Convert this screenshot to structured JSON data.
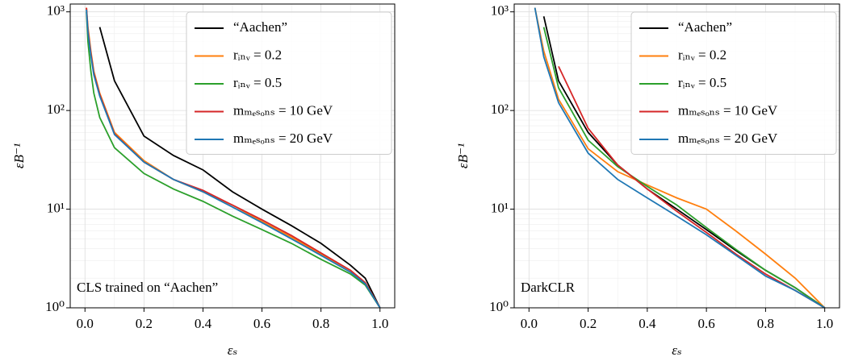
{
  "chart_data": [
    {
      "type": "line",
      "x_label": "εₛ",
      "y_label": "εB⁻¹",
      "annotation": "CLS trained on “Aachen”",
      "xlim": [
        -0.05,
        1.05
      ],
      "ylim": [
        1,
        1200
      ],
      "log_y": true,
      "grid": true,
      "legend": "upper right",
      "xticks": [
        {
          "value": 0,
          "label": "0.0"
        },
        0.2,
        0.4,
        0.6,
        0.8,
        {
          "value": 1,
          "label": "1.0"
        }
      ],
      "yticks": [
        {
          "value": 1,
          "label": "10⁰"
        },
        {
          "value": 10,
          "label": "10¹"
        },
        {
          "value": 100,
          "label": "10²"
        },
        {
          "value": 1000,
          "label": "10³"
        }
      ],
      "x": [
        0.005,
        0.01,
        0.02,
        0.03,
        0.05,
        0.1,
        0.2,
        0.3,
        0.4,
        0.5,
        0.6,
        0.7,
        0.8,
        0.9,
        0.95,
        1.0
      ],
      "series": [
        {
          "name": "“Aachen”",
          "color": "#000000",
          "values": [
            null,
            null,
            null,
            null,
            700,
            200,
            55,
            35,
            25,
            15,
            10,
            6.8,
            4.5,
            2.7,
            2,
            1
          ]
        },
        {
          "name": "rᵢₙᵥ = 0.2",
          "color": "#ff7f0e",
          "values": [
            1100,
            700,
            400,
            250,
            150,
            60,
            31,
            20,
            15,
            11,
            7.5,
            5.2,
            3.5,
            2.4,
            1.8,
            1
          ]
        },
        {
          "name": "rᵢₙᵥ = 0.5",
          "color": "#2ca02c",
          "values": [
            1000,
            500,
            250,
            150,
            85,
            42,
            23,
            16,
            12,
            8.5,
            6.2,
            4.5,
            3.1,
            2.2,
            1.7,
            1
          ]
        },
        {
          "name": "mₘₑₛₒₙₛ = 10 GeV",
          "color": "#d62728",
          "values": [
            1100,
            650,
            380,
            240,
            145,
            58,
            30,
            20,
            15.5,
            11,
            7.8,
            5.4,
            3.6,
            2.4,
            1.8,
            1
          ]
        },
        {
          "name": "mₘₑₛₒₙₛ = 20 GeV",
          "color": "#1f77b4",
          "values": [
            1050,
            620,
            360,
            230,
            140,
            57,
            30,
            20,
            15,
            10.5,
            7.3,
            5.0,
            3.4,
            2.3,
            1.75,
            1
          ]
        }
      ]
    },
    {
      "type": "line",
      "x_label": "εₛ",
      "y_label": "εB⁻¹",
      "annotation": "DarkCLR",
      "xlim": [
        -0.05,
        1.05
      ],
      "ylim": [
        1,
        1200
      ],
      "log_y": true,
      "grid": true,
      "legend": "upper right",
      "xticks": [
        {
          "value": 0,
          "label": "0.0"
        },
        0.2,
        0.4,
        0.6,
        0.8,
        {
          "value": 1,
          "label": "1.0"
        }
      ],
      "yticks": [
        {
          "value": 1,
          "label": "10⁰"
        },
        {
          "value": 10,
          "label": "10¹"
        },
        {
          "value": 100,
          "label": "10²"
        },
        {
          "value": 1000,
          "label": "10³"
        }
      ],
      "x": [
        0.02,
        0.05,
        0.1,
        0.2,
        0.3,
        0.4,
        0.5,
        0.6,
        0.7,
        0.8,
        0.9,
        1.0
      ],
      "series": [
        {
          "name": "“Aachen”",
          "color": "#000000",
          "values": [
            null,
            900,
            200,
            60,
            28,
            16,
            10,
            6.2,
            3.8,
            2.4,
            1.6,
            1
          ]
        },
        {
          "name": "rᵢₙᵥ = 0.2",
          "color": "#ff7f0e",
          "values": [
            1100,
            400,
            130,
            41,
            24,
            17.6,
            13,
            10,
            6,
            3.5,
            2,
            1
          ]
        },
        {
          "name": "rᵢₙᵥ = 0.5",
          "color": "#2ca02c",
          "values": [
            null,
            700,
            170,
            50,
            27,
            17,
            11,
            6.5,
            3.9,
            2.4,
            1.6,
            1
          ]
        },
        {
          "name": "mₘₑₛₒₙₛ = 10 GeV",
          "color": "#d62728",
          "values": [
            null,
            null,
            280,
            66,
            28,
            16,
            9.5,
            5.8,
            3.5,
            2.2,
            1.5,
            1
          ]
        },
        {
          "name": "mₘₑₛₒₙₛ = 20 GeV",
          "color": "#1f77b4",
          "values": [
            1100,
            350,
            120,
            37,
            20,
            13,
            8.5,
            5.5,
            3.4,
            2.1,
            1.5,
            1
          ]
        }
      ]
    }
  ]
}
